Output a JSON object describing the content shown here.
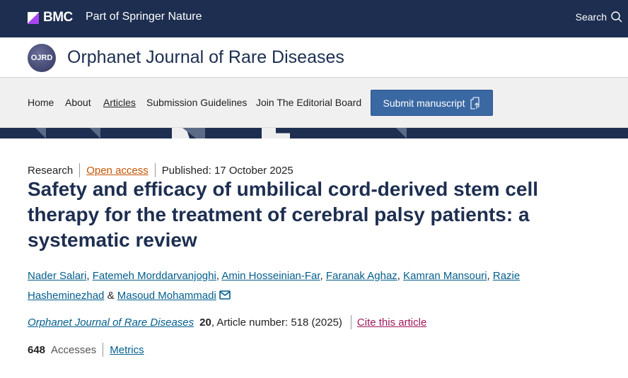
{
  "header": {
    "brand": "BMC",
    "tagline": "Part of Springer Nature",
    "search_label": "Search"
  },
  "journal": {
    "logo_text": "OJRD",
    "title": "Orphanet Journal of Rare Diseases"
  },
  "nav": {
    "items": [
      "Home",
      "About",
      "Articles",
      "Submission Guidelines",
      "Join The Editorial Board"
    ],
    "submit_label": "Submit manuscript"
  },
  "article": {
    "type": "Research",
    "access": "Open access",
    "published": "Published: 17 October 2025",
    "title": "Safety and efficacy of umbilical cord-derived stem cell therapy for the treatment of cerebral palsy patients: a systematic review",
    "authors": [
      "Nader Salari",
      "Fatemeh Morddarvanjoghi",
      "Amin Hosseinian-Far",
      "Faranak Aghaz",
      "Kamran Mansouri",
      "Razie Hasheminezhad",
      "Masoud Mohammadi"
    ],
    "journal": "Orphanet Journal of Rare Diseases",
    "volume": "20",
    "article_number": ", Article number: 518 (2025)",
    "cite": "Cite this article",
    "accesses_count": "648",
    "accesses_label": "Accesses",
    "metrics": "Metrics"
  },
  "colors": {
    "header": "#1d2e50",
    "button": "#3a68a3",
    "open_access": "#c65301",
    "cite": "#a0185b",
    "link": "#025e8d"
  }
}
